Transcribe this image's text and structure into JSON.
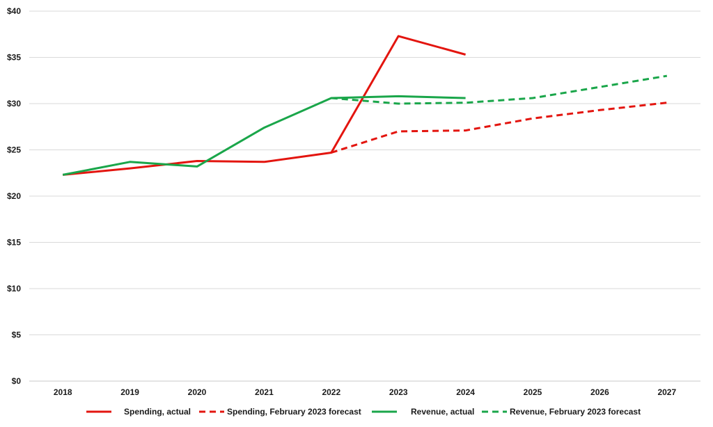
{
  "chart_data": {
    "type": "line",
    "title": "",
    "xlabel": "",
    "ylabel": "",
    "x": [
      "2018",
      "2019",
      "2020",
      "2021",
      "2022",
      "2023",
      "2024",
      "2025",
      "2026",
      "2027"
    ],
    "y_ticks": [
      "$0",
      "$5",
      "$10",
      "$15",
      "$20",
      "$25",
      "$30",
      "$35",
      "$40"
    ],
    "ylim": [
      0,
      40
    ],
    "grid": "horizontal",
    "legend_position": "bottom",
    "series": [
      {
        "name": "Spending, actual",
        "color": "#e3150f",
        "dashed": false,
        "values": [
          22.3,
          23.0,
          23.8,
          23.7,
          24.7,
          37.3,
          35.3,
          null,
          null,
          null
        ]
      },
      {
        "name": "Spending, February 2023 forecast",
        "color": "#e3150f",
        "dashed": true,
        "values": [
          null,
          null,
          null,
          null,
          24.7,
          27.0,
          27.1,
          28.4,
          29.3,
          30.1
        ]
      },
      {
        "name": "Revenue, actual",
        "color": "#1aa64a",
        "dashed": false,
        "values": [
          22.3,
          23.7,
          23.2,
          27.4,
          30.6,
          30.8,
          30.6,
          null,
          null,
          null
        ]
      },
      {
        "name": "Revenue, February 2023 forecast",
        "color": "#1aa64a",
        "dashed": true,
        "values": [
          null,
          null,
          null,
          null,
          30.6,
          30.0,
          30.1,
          30.6,
          31.8,
          33.0
        ]
      }
    ]
  }
}
